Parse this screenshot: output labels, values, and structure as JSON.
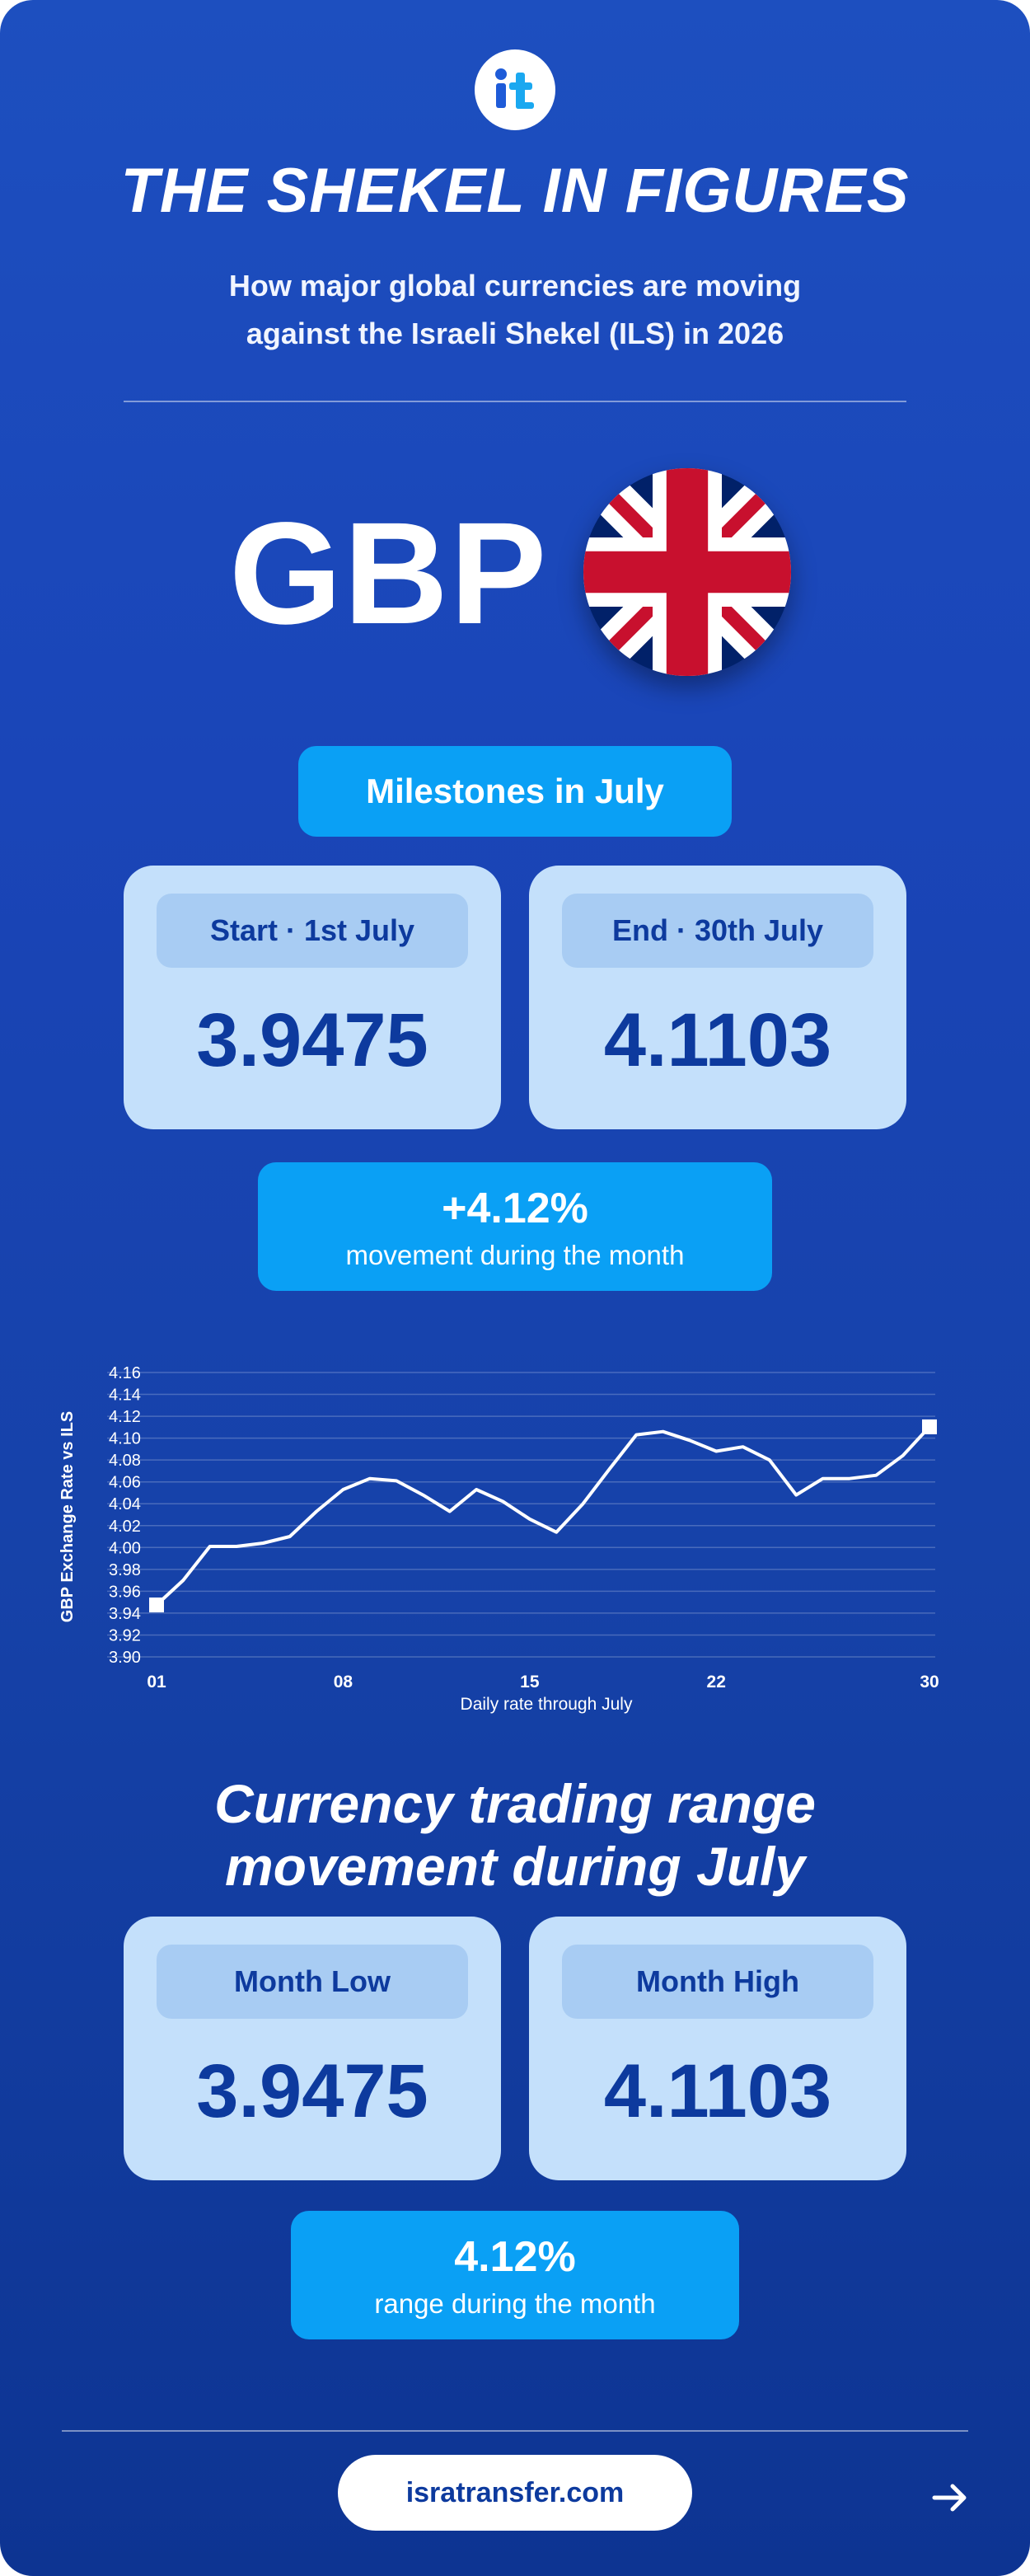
{
  "header": {
    "title": "THE SHEKEL IN FIGURES",
    "subtitle_line1": "How major global currencies are moving",
    "subtitle_line2": "against the Israeli Shekel (ILS) in 2026"
  },
  "currency": {
    "code": "GBP",
    "flag_icon": "uk-flag-icon"
  },
  "milestones": {
    "heading": "Milestones in July",
    "start_label": "Start · 1st July",
    "start_value": "3.9475",
    "end_label": "End · 30th July",
    "end_value": "4.1103",
    "movement_value": "+4.12%",
    "movement_text": "movement during the month"
  },
  "chart_data": {
    "type": "line",
    "ylabel": "GBP Exchange Rate vs ILS",
    "xlabel": "Daily rate through July",
    "x_ticks": [
      "01",
      "08",
      "15",
      "22",
      "30"
    ],
    "y_ticks": [
      "4.16",
      "4.14",
      "4.12",
      "4.10",
      "4.08",
      "4.06",
      "4.04",
      "4.02",
      "4.00",
      "3.98",
      "3.96",
      "3.94",
      "3.92",
      "3.90"
    ],
    "ylim": [
      3.9,
      4.16
    ],
    "xlim": [
      1,
      30
    ],
    "grid": true,
    "series": [
      {
        "x": [
          1,
          2,
          3,
          4,
          5,
          6,
          7,
          8,
          9,
          10,
          11,
          12,
          13,
          14,
          15,
          16,
          17,
          18,
          19,
          20,
          21,
          22,
          23,
          24,
          25,
          26,
          27,
          28,
          29,
          30
        ],
        "values": [
          3.9475,
          3.97,
          4.001,
          4.001,
          4.004,
          4.01,
          4.033,
          4.053,
          4.063,
          4.061,
          4.048,
          4.033,
          4.053,
          4.042,
          4.026,
          4.014,
          4.04,
          4.072,
          4.103,
          4.106,
          4.098,
          4.088,
          4.092,
          4.08,
          4.048,
          4.063,
          4.063,
          4.066,
          4.084,
          4.1103
        ]
      }
    ],
    "markers": [
      {
        "x": 1,
        "y": 3.9475
      },
      {
        "x": 30,
        "y": 4.1103
      }
    ]
  },
  "range": {
    "heading_line1": "Currency trading range",
    "heading_line2": "movement during July",
    "low_label": "Month Low",
    "low_value": "3.9475",
    "high_label": "Month High",
    "high_value": "4.1103",
    "range_value": "4.12%",
    "range_text": "range during the month"
  },
  "footer": {
    "website": "isratransfer.com",
    "arrow_icon": "arrow-right-icon"
  },
  "colors": {
    "background": "#1a45b8",
    "accent": "#0aa0f5",
    "card": "#c4e0fb",
    "card_label": "#a8ccf3",
    "value_text": "#0d3a9e"
  }
}
